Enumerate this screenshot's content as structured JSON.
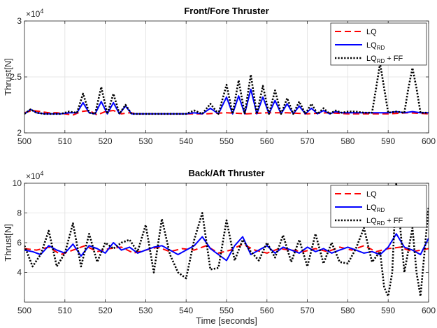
{
  "chart_data": [
    {
      "type": "line",
      "title": "Front/Fore Thruster",
      "xlabel": "",
      "ylabel": "Thrust[N]",
      "exponent_label": "×10",
      "exponent_power": "4",
      "xlim": [
        500,
        600
      ],
      "ylim": [
        20000,
        30000
      ],
      "xticks": [
        "500",
        "510",
        "520",
        "530",
        "540",
        "550",
        "560",
        "570",
        "580",
        "590",
        "600"
      ],
      "yticks": [
        "2",
        "2.5",
        "3"
      ],
      "ytick_values": [
        20000,
        25000,
        30000
      ],
      "grid": true,
      "legend_position": "top-right",
      "legend": [
        {
          "base": "LQ",
          "sub": "",
          "suffix": "",
          "color": "#ff0000",
          "dash": "dashed"
        },
        {
          "base": "LQ",
          "sub": "RD",
          "suffix": "",
          "color": "#0000ff",
          "dash": "solid"
        },
        {
          "base": "LQ",
          "sub": "RD",
          "suffix": " + FF",
          "color": "#000000",
          "dash": "dotted"
        }
      ],
      "series": [
        {
          "name": "LQ",
          "color": "#ff0000",
          "x": [
            500,
            502,
            504,
            506,
            508,
            510,
            512,
            514,
            516,
            518,
            520,
            522,
            524,
            526,
            528,
            530,
            535,
            540,
            545,
            550,
            555,
            560,
            565,
            570,
            575,
            580,
            585,
            590,
            595,
            600
          ],
          "y": [
            21800,
            22000,
            21900,
            21800,
            21800,
            21700,
            21600,
            21900,
            22000,
            21600,
            21900,
            22000,
            21700,
            21800,
            21700,
            21700,
            21700,
            21700,
            21700,
            21800,
            21700,
            21800,
            21800,
            21700,
            21800,
            21700,
            21700,
            21700,
            21800,
            21700
          ]
        },
        {
          "name": "LQRD",
          "color": "#0000ff",
          "x": [
            500,
            501.5,
            503,
            505,
            507,
            509,
            511,
            513,
            514.5,
            516,
            517.5,
            519,
            520.5,
            522,
            523.5,
            525,
            526.5,
            528,
            530,
            535,
            540,
            542,
            544,
            546,
            548,
            550,
            551.5,
            553,
            554.5,
            556,
            557.5,
            559,
            560.5,
            562,
            563.5,
            565,
            566.5,
            568,
            569.5,
            571,
            572.5,
            574,
            575.5,
            577,
            578.5,
            580,
            582,
            584,
            586,
            588,
            590,
            592,
            594,
            596,
            598,
            600
          ],
          "y": [
            21700,
            22100,
            21800,
            21700,
            21700,
            21700,
            21800,
            21800,
            22700,
            21800,
            21700,
            22800,
            21700,
            22700,
            21700,
            22400,
            21700,
            21700,
            21700,
            21700,
            21700,
            21800,
            21700,
            22200,
            21700,
            23200,
            21700,
            23300,
            21700,
            23900,
            21700,
            23200,
            21700,
            22900,
            21700,
            22600,
            21700,
            22400,
            21700,
            22200,
            21700,
            22000,
            21700,
            21900,
            21800,
            21800,
            21800,
            21800,
            21800,
            21800,
            21800,
            21900,
            21800,
            21900,
            21800,
            21800
          ]
        },
        {
          "name": "LQRD + FF",
          "color": "#000000",
          "x": [
            500,
            501.5,
            503,
            505,
            507,
            509,
            511,
            513,
            514.5,
            516,
            517.5,
            519,
            520.5,
            522,
            523.5,
            525,
            526.5,
            528,
            530,
            535,
            540,
            542,
            544,
            546,
            548,
            550,
            551.5,
            553,
            554.5,
            556,
            557.5,
            559,
            560.5,
            562,
            563.5,
            565,
            566.5,
            568,
            569.5,
            571,
            572.5,
            574,
            575.5,
            577,
            578.5,
            580,
            582,
            584,
            586,
            587,
            588,
            589,
            590,
            592,
            594,
            595,
            596,
            597,
            598,
            600
          ],
          "y": [
            21700,
            22100,
            21800,
            21700,
            21700,
            21700,
            21900,
            21800,
            23500,
            21800,
            21700,
            24100,
            21700,
            23500,
            21700,
            22500,
            21700,
            21700,
            21700,
            21700,
            21700,
            22000,
            21700,
            22600,
            21700,
            24300,
            21700,
            24700,
            21700,
            25200,
            21700,
            24200,
            21700,
            23800,
            21700,
            23100,
            21700,
            22800,
            21700,
            22600,
            21700,
            22200,
            21700,
            22000,
            21800,
            21900,
            21900,
            21800,
            21800,
            24000,
            26200,
            24000,
            21800,
            21900,
            21800,
            24000,
            25800,
            24000,
            21800,
            21800
          ]
        }
      ]
    },
    {
      "type": "line",
      "title": "Back/Aft Thruster",
      "xlabel": "Time [seconds]",
      "ylabel": "Thrust[N]",
      "exponent_label": "×10",
      "exponent_power": "4",
      "xlim": [
        500,
        600
      ],
      "ylim": [
        20000,
        100000
      ],
      "xticks": [
        "500",
        "510",
        "520",
        "530",
        "540",
        "550",
        "560",
        "570",
        "580",
        "590",
        "600"
      ],
      "yticks": [
        "4",
        "6",
        "8",
        "10"
      ],
      "ytick_values": [
        40000,
        60000,
        80000,
        100000
      ],
      "grid": true,
      "legend_position": "top-right",
      "legend": [
        {
          "base": "LQ",
          "sub": "",
          "suffix": "",
          "color": "#ff0000",
          "dash": "dashed"
        },
        {
          "base": "LQ",
          "sub": "RD",
          "suffix": "",
          "color": "#0000ff",
          "dash": "solid"
        },
        {
          "base": "LQ",
          "sub": "RD",
          "suffix": " + FF",
          "color": "#000000",
          "dash": "dotted"
        }
      ],
      "series": [
        {
          "name": "LQ",
          "color": "#ff0000",
          "x": [
            500,
            503,
            506,
            509,
            512,
            515,
            518,
            521,
            524,
            527,
            530,
            533,
            536,
            539,
            542,
            545,
            548,
            551,
            554,
            557,
            560,
            563,
            566,
            569,
            572,
            575,
            578,
            581,
            584,
            587,
            590,
            593,
            596,
            600
          ],
          "y": [
            56000,
            55000,
            57000,
            52000,
            55000,
            58000,
            54000,
            56000,
            57000,
            53000,
            55000,
            57000,
            54000,
            56000,
            55000,
            58000,
            53000,
            55000,
            59000,
            55000,
            53000,
            56000,
            55000,
            54000,
            56000,
            54000,
            57000,
            55000,
            58000,
            54000,
            56000,
            57000,
            54000,
            56000
          ]
        },
        {
          "name": "LQRD",
          "color": "#0000ff",
          "x": [
            500,
            502,
            504,
            506,
            508,
            510,
            512,
            514,
            516,
            518,
            520,
            522,
            524,
            526,
            528,
            530,
            532,
            534,
            536,
            538,
            540,
            542,
            544,
            546,
            548,
            550,
            552,
            554,
            556,
            558,
            560,
            562,
            564,
            566,
            568,
            570,
            572,
            574,
            576,
            578,
            580,
            582,
            584,
            586,
            588,
            590,
            592,
            594,
            596,
            598,
            600
          ],
          "y": [
            55000,
            54000,
            52000,
            58000,
            55000,
            53000,
            59000,
            51000,
            58000,
            56000,
            53000,
            60000,
            55000,
            57000,
            53000,
            55000,
            57000,
            58000,
            55000,
            52000,
            55000,
            58000,
            64000,
            56000,
            52000,
            48000,
            58000,
            64000,
            52000,
            55000,
            58000,
            53000,
            57000,
            55000,
            53000,
            57000,
            54000,
            56000,
            53000,
            55000,
            57000,
            55000,
            53000,
            54000,
            52000,
            57000,
            66000,
            57000,
            55000,
            52000,
            63000
          ]
        },
        {
          "name": "LQRD + FF",
          "color": "#000000",
          "x": [
            500,
            502,
            504,
            506,
            508,
            510,
            512,
            514,
            516,
            518,
            520,
            522,
            524,
            526,
            528,
            530,
            532,
            534,
            536,
            538,
            540,
            542,
            544,
            546,
            548,
            550,
            552,
            554,
            556,
            558,
            560,
            562,
            564,
            566,
            568,
            570,
            572,
            574,
            576,
            578,
            580,
            582,
            584,
            586,
            588,
            589,
            590,
            591,
            592,
            593,
            594,
            596,
            597,
            598,
            600
          ],
          "y": [
            58000,
            44000,
            52000,
            68000,
            44000,
            53000,
            73000,
            44000,
            66000,
            47000,
            60000,
            56000,
            60000,
            62000,
            54000,
            72000,
            40000,
            76000,
            52000,
            40000,
            36000,
            62000,
            80000,
            42000,
            43000,
            75000,
            48000,
            62000,
            54000,
            48000,
            60000,
            50000,
            65000,
            47000,
            62000,
            44000,
            66000,
            46000,
            60000,
            47000,
            46000,
            56000,
            70000,
            47000,
            54000,
            30000,
            24000,
            40000,
            101000,
            70000,
            40000,
            70000,
            40000,
            24000,
            84000
          ]
        }
      ]
    }
  ]
}
